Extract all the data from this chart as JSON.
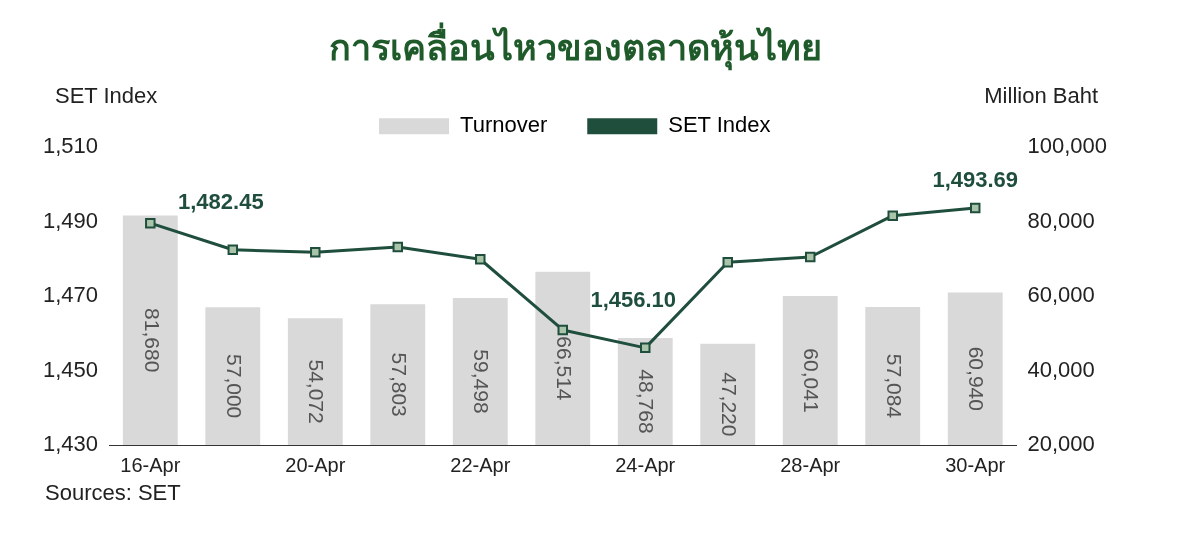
{
  "chart_data": {
    "type": "bar",
    "title": "การเคลื่อนไหวของตลาดหุ้นไทย",
    "ylabel": "SET Index",
    "y2label": "Million Baht",
    "categories": [
      "16-Apr",
      null,
      "20-Apr",
      null,
      "22-Apr",
      null,
      "24-Apr",
      null,
      "28-Apr",
      null,
      "30-Apr"
    ],
    "series": [
      {
        "name": "Turnover",
        "axis": "y2",
        "color": "#d9d9d9",
        "values": [
          81680,
          57000,
          54072,
          57803,
          59498,
          66514,
          48768,
          47220,
          60041,
          57084,
          60940
        ],
        "value_labels": [
          "81,680",
          "57,000",
          "54,072",
          "57,803",
          "59,498",
          "66,514",
          "48,768",
          "47,220",
          "60,041",
          "57,084",
          "60,940"
        ]
      },
      {
        "name": "SET Index",
        "type": "line",
        "axis": "y",
        "color": "#1f4e3d",
        "marker": "square",
        "line_style": "solid",
        "values": [
          1489.6,
          1482.45,
          1481.8,
          1483.2,
          1479.9,
          1460.9,
          1456.1,
          1479.1,
          1480.5,
          1491.6,
          1493.69
        ],
        "value_labels": [
          null,
          "1,482.45",
          null,
          null,
          null,
          null,
          "1,456.10",
          null,
          null,
          null,
          "1,493.69"
        ]
      }
    ],
    "ylim": [
      1430,
      1510
    ],
    "yticks": [
      {
        "value": 1430,
        "label": "1,430"
      },
      {
        "value": 1450,
        "label": "1,450"
      },
      {
        "value": 1470,
        "label": "1,470"
      },
      {
        "value": 1490,
        "label": "1,490"
      },
      {
        "value": 1510,
        "label": "1,510"
      }
    ],
    "y2lim": [
      20000,
      100000
    ],
    "y2ticks": [
      {
        "value": 20000,
        "label": "20,000"
      },
      {
        "value": 40000,
        "label": "40,000"
      },
      {
        "value": 60000,
        "label": "60,000"
      },
      {
        "value": 80000,
        "label": "80,000"
      },
      {
        "value": 100000,
        "label": "100,000"
      }
    ],
    "grid": false,
    "legend": "top",
    "annotations": [
      "Sources: SET"
    ]
  }
}
